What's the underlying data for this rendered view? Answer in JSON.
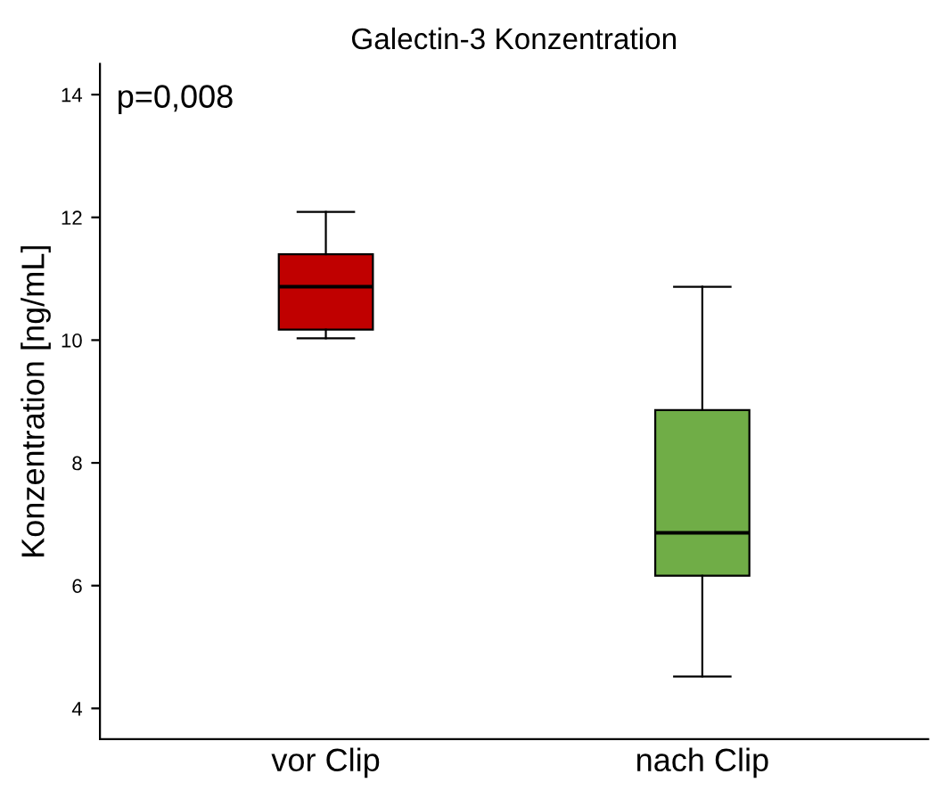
{
  "chart_data": {
    "type": "box",
    "title": "Galectin-3 Konzentration",
    "ylabel": "Konzentration [ng/mL]",
    "categories": [
      "vor Clip",
      "nach Clip"
    ],
    "boxes": [
      {
        "low": 10.03,
        "q1": 10.17,
        "median": 10.87,
        "q3": 11.4,
        "high": 12.09
      },
      {
        "low": 4.52,
        "q1": 6.16,
        "median": 6.86,
        "q3": 8.86,
        "high": 10.87
      }
    ],
    "colors": [
      "#c00000",
      "#70ad47"
    ],
    "ylim": [
      3.5,
      14.5
    ],
    "yticks": [
      4,
      6,
      8,
      10,
      12,
      14
    ],
    "grid": false,
    "annotations": [
      "p=0,008"
    ]
  }
}
